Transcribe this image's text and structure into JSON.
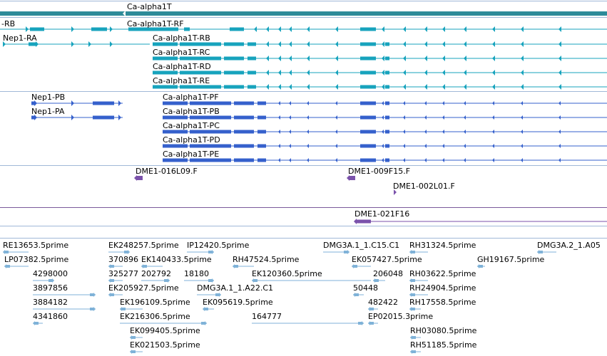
{
  "colors": {
    "ca_gene": "#2e8b99",
    "ca_rna": "#17a3bd",
    "pa_rna": "#3560cc",
    "clone": "#7b52ab",
    "est": "#7fb2d8",
    "separator": "#a0b8d8"
  },
  "gene": {
    "label": "Ca-alpha1T"
  },
  "rna_group": [
    {
      "label": "-RB"
    },
    {
      "label": "Ca-alpha1T-RF"
    },
    {
      "label": "Nep1-RA"
    },
    {
      "label": "Ca-alpha1T-RB"
    },
    {
      "label": "Ca-alpha1T-RC"
    },
    {
      "label": "Ca-alpha1T-RD"
    },
    {
      "label": "Ca-alpha1T-RE"
    }
  ],
  "protein_group": [
    {
      "label": "Nep1-PB"
    },
    {
      "label": "Nep1-PA"
    },
    {
      "label": "Ca-alpha1T-PF"
    },
    {
      "label": "Ca-alpha1T-PB"
    },
    {
      "label": "Ca-alpha1T-PC"
    },
    {
      "label": "Ca-alpha1T-PD"
    },
    {
      "label": "Ca-alpha1T-PE"
    }
  ],
  "clones": [
    {
      "label": "DME1-016L09.F"
    },
    {
      "label": "DME1-009F15.F"
    },
    {
      "label": "DME1-002L01.F"
    }
  ],
  "bac": {
    "label": "DME1-021F16"
  },
  "ests": [
    {
      "label": "RE13653.5prime"
    },
    {
      "label": "EK248257.5prime"
    },
    {
      "label": "IP12420.5prime"
    },
    {
      "label": "DMG3A.1_1.C15.C1"
    },
    {
      "label": "RH31324.5prime"
    },
    {
      "label": "DMG3A.2_1.A05"
    },
    {
      "label": "LP07382.5prime"
    },
    {
      "label": "370896"
    },
    {
      "label": "EK140433.5prime"
    },
    {
      "label": "RH47524.5prime"
    },
    {
      "label": "EK057427.5prime"
    },
    {
      "label": "GH19167.5prime"
    },
    {
      "label": "4298000"
    },
    {
      "label": "325277"
    },
    {
      "label": "202792"
    },
    {
      "label": "18180"
    },
    {
      "label": "EK120360.5prime"
    },
    {
      "label": "206048"
    },
    {
      "label": "RH03622.5prime"
    },
    {
      "label": "3897856"
    },
    {
      "label": "EK205927.5prime"
    },
    {
      "label": "DMG3A.1_1.A22.C1"
    },
    {
      "label": "50448"
    },
    {
      "label": "RH24904.5prime"
    },
    {
      "label": "3884182"
    },
    {
      "label": "EK196109.5prime"
    },
    {
      "label": "EK095619.5prime"
    },
    {
      "label": "482422"
    },
    {
      "label": "RH17558.5prime"
    },
    {
      "label": "4341860"
    },
    {
      "label": "EK216306.5prime"
    },
    {
      "label": "164777"
    },
    {
      "label": "EP02015.3prime"
    },
    {
      "label": "EK099405.5prime"
    },
    {
      "label": "RH03080.5prime"
    },
    {
      "label": "EK021503.5prime"
    },
    {
      "label": "RH51185.5prime"
    }
  ]
}
